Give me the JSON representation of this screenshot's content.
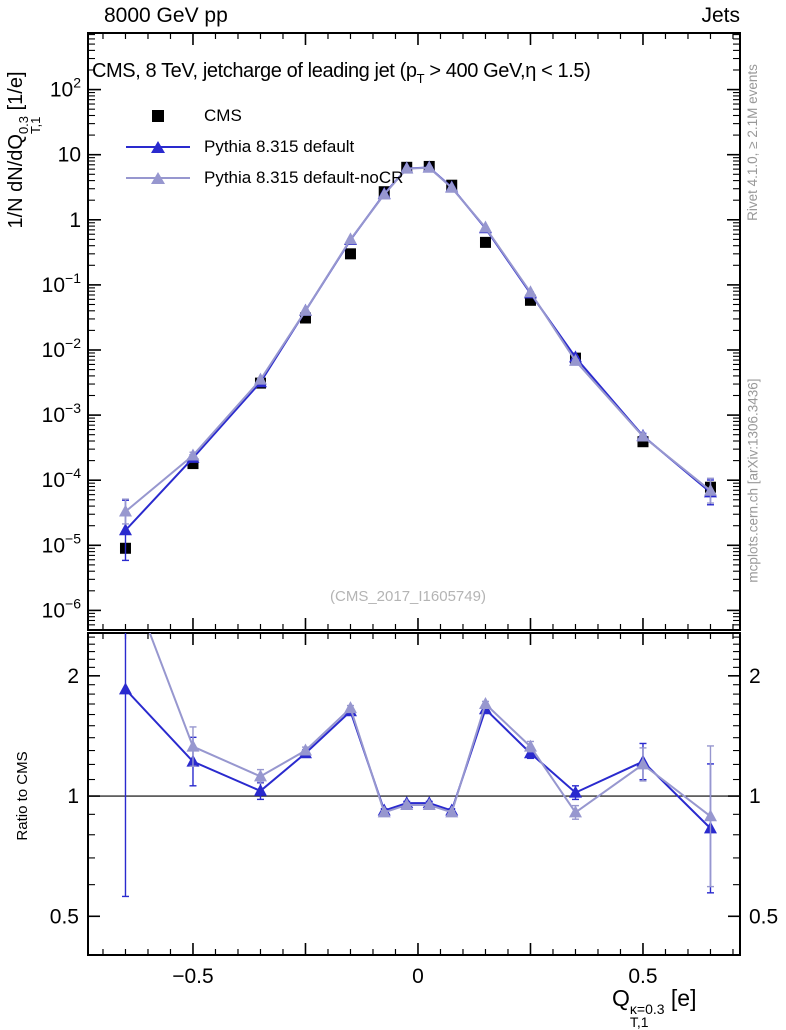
{
  "header": {
    "left": "8000 GeV pp",
    "right": "Jets"
  },
  "main_title": {
    "pre": "CMS, 8 TeV, jetcharge of leading jet (p",
    "sub": "T",
    "post": " > 400 GeV,η < 1.5)"
  },
  "watermark": "(CMS_2017_I1605749)",
  "credits": {
    "top": "Rivet 4.1.0, ≥ 2.1M events",
    "bottom": "mcplots.cern.ch [arXiv:1306.3436]"
  },
  "axis_titles": {
    "y_pre": "1/N dN/dQ",
    "y_sup": "0.3",
    "y_sub": "T,1",
    "y_post": " [1/e]",
    "ratio": "Ratio to CMS",
    "x_base": "Q",
    "x_sup": "κ=0.3",
    "x_sub": "T,1",
    "x_post": " [e]"
  },
  "legend": [
    {
      "label": "CMS",
      "marker": "square",
      "color": "#000000",
      "line": false
    },
    {
      "label": "Pythia 8.315 default",
      "marker": "triangle",
      "color": "#2a2ace",
      "line": true
    },
    {
      "label": "Pythia 8.315 default-noCR",
      "marker": "triangle",
      "color": "#9797cf",
      "line": true
    }
  ],
  "colors": {
    "cms": "#000000",
    "pythia_default": "#2a2ace",
    "pythia_nocr": "#9797cf",
    "frame": "#000000",
    "refline": "#000000"
  },
  "chart_data": {
    "type": "line",
    "title": "CMS, 8 TeV, jetcharge of leading jet (pT > 400 GeV, eta < 1.5)",
    "xlabel": "Q_T,1^(kappa=0.3) [e]",
    "ylabel": "1/N dN/dQ_T,1^0.3 [1/e]",
    "ratio_ylabel": "Ratio to CMS",
    "grid": false,
    "legend_position": "top-left-inside",
    "x": [
      -0.65,
      -0.5,
      -0.35,
      -0.25,
      -0.15,
      -0.075,
      -0.025,
      0.025,
      0.075,
      0.15,
      0.25,
      0.35,
      0.5,
      0.65
    ],
    "xlim": [
      -0.7333,
      0.7156
    ],
    "xticks": [
      {
        "v": -0.5,
        "label": "−0.5"
      },
      {
        "v": 0,
        "label": "0"
      },
      {
        "v": 0.5,
        "label": "0.5"
      }
    ],
    "xtick_minor_step": 0.05,
    "xtick_major_step": 0.25,
    "main_panel": {
      "yscale": "log",
      "ylim": [
        5e-07,
        740.0
      ],
      "ytick_exponents": [
        2,
        1,
        0,
        -1,
        -2,
        -3,
        -4,
        -5,
        -6
      ],
      "series": [
        {
          "name": "CMS",
          "marker": "square",
          "color": "#000000",
          "line": false,
          "values": [
            9e-06,
            0.00018,
            0.0031,
            0.031,
            0.3,
            2.7,
            6.4,
            6.6,
            3.4,
            0.45,
            0.058,
            0.0075,
            0.00039,
            7.8e-05
          ],
          "err_factor": null
        },
        {
          "name": "Pythia 8.315 default",
          "marker": "triangle",
          "color": "#2a2ace",
          "line": true,
          "values": [
            1.7e-05,
            0.00022,
            0.0032,
            0.04,
            0.49,
            2.5,
            6.15,
            6.35,
            3.15,
            0.74,
            0.074,
            0.0077,
            0.00048,
            6.5e-05
          ],
          "err_factor": [
            2.9,
            1.12,
            1.03,
            1.02,
            1.01,
            1.008,
            1.008,
            1.008,
            1.008,
            1.01,
            1.02,
            1.03,
            1.09,
            1.55
          ]
        },
        {
          "name": "Pythia 8.315 default-noCR",
          "marker": "triangle",
          "color": "#9797cf",
          "line": true,
          "values": [
            3.3e-05,
            0.00024,
            0.0035,
            0.04,
            0.5,
            2.45,
            6.1,
            6.3,
            3.1,
            0.76,
            0.077,
            0.0068,
            0.00047,
            6.9e-05
          ],
          "err_factor": [
            1.55,
            1.12,
            1.03,
            1.02,
            1.01,
            1.008,
            1.008,
            1.008,
            1.008,
            1.01,
            1.02,
            1.03,
            1.09,
            1.55
          ]
        }
      ]
    },
    "ratio_panel": {
      "yscale": "log",
      "ylim": [
        0.4,
        2.56
      ],
      "refline": 1,
      "yticks": [
        {
          "v": 2,
          "label": "2"
        },
        {
          "v": 1,
          "label": "1"
        },
        {
          "v": 0.5,
          "label": "0.5"
        }
      ],
      "series": [
        {
          "name": "Pythia 8.315 default",
          "marker": "triangle",
          "color": "#2a2ace",
          "line": true,
          "values": [
            1.85,
            1.22,
            1.03,
            1.28,
            1.63,
            0.92,
            0.96,
            0.96,
            0.92,
            1.65,
            1.28,
            1.02,
            1.22,
            0.83
          ],
          "err_factor": [
            3.3,
            1.15,
            1.05,
            1.02,
            1.015,
            1.01,
            1.01,
            1.01,
            1.01,
            1.015,
            1.03,
            1.04,
            1.11,
            1.45
          ]
        },
        {
          "name": "Pythia 8.315 default-noCR",
          "marker": "triangle",
          "color": "#9797cf",
          "line": true,
          "values": [
            3.7,
            1.33,
            1.12,
            1.3,
            1.66,
            0.91,
            0.95,
            0.95,
            0.91,
            1.7,
            1.33,
            0.91,
            1.2,
            0.89
          ],
          "err_factor": [
            1.0,
            1.12,
            1.04,
            1.02,
            1.015,
            1.01,
            1.01,
            1.01,
            1.01,
            1.015,
            1.03,
            1.04,
            1.1,
            1.5
          ]
        }
      ]
    }
  }
}
